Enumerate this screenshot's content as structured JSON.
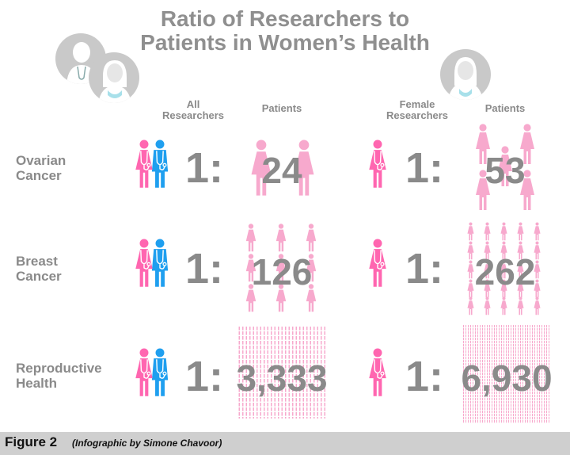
{
  "title_line1": "Ratio of Researchers to",
  "title_line2": "Patients in Women’s Health",
  "headers": {
    "all_researchers": [
      "All",
      "Researchers"
    ],
    "patients_left": "Patients",
    "female_researchers": [
      "Female",
      "Researchers"
    ],
    "patients_right": "Patients"
  },
  "rows": [
    {
      "label": [
        "Ovarian",
        "Cancer"
      ],
      "all_ratio": "1:",
      "all_patients": "24",
      "female_ratio": "1:",
      "female_patients": "53"
    },
    {
      "label": [
        "Breast",
        "Cancer"
      ],
      "all_ratio": "1:",
      "all_patients": "126",
      "female_ratio": "1:",
      "female_patients": "262"
    },
    {
      "label": [
        "Reproductive",
        "Health"
      ],
      "all_ratio": "1:",
      "all_patients": "3,333",
      "female_ratio": "1:",
      "female_patients": "6,930"
    }
  ],
  "footer": {
    "figure": "Figure 2",
    "credit": "(Infographic by Simone Chavoor)"
  },
  "colors": {
    "female": "#ff66b0",
    "male": "#1f9fef",
    "patient": "#f7a9cd",
    "text": "#8a8a8a"
  },
  "icons": [
    "female-doctor-icon",
    "male-doctor-icon",
    "patient-icon"
  ]
}
